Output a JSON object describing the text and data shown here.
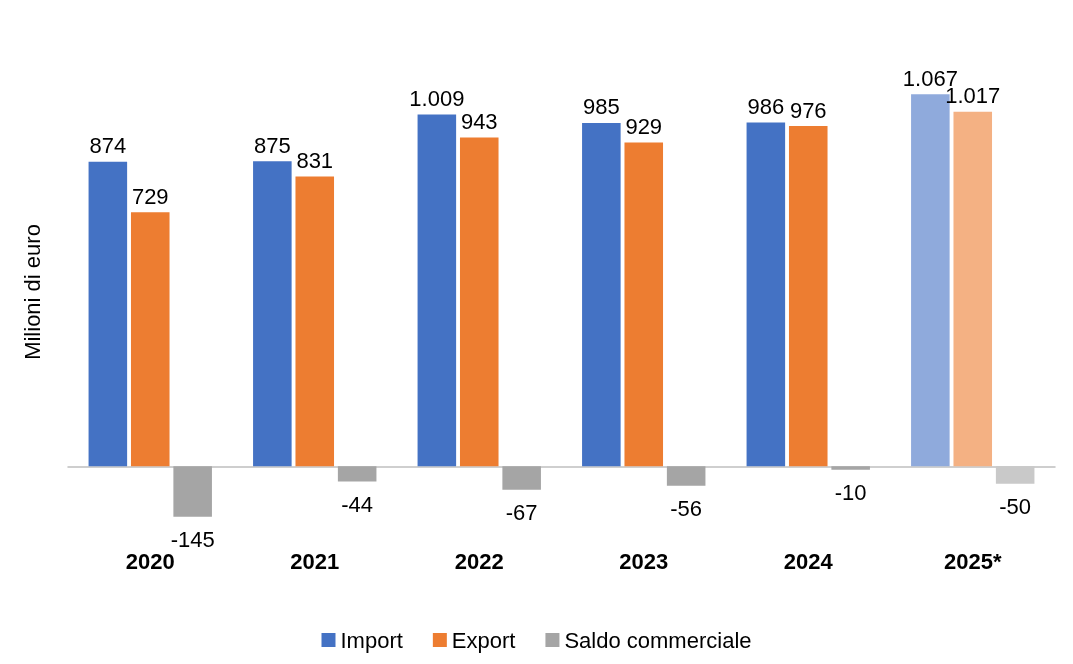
{
  "chart_data": {
    "type": "bar",
    "ylabel": "Milioni di euro",
    "categories": [
      "2020",
      "2021",
      "2022",
      "2023",
      "2024",
      "2025*"
    ],
    "series": [
      {
        "name": "Import",
        "color": "#4472c4",
        "colors": [
          "#4472c4",
          "#4472c4",
          "#4472c4",
          "#4472c4",
          "#4472c4",
          "#8faadc"
        ],
        "values": [
          874,
          875,
          1009,
          985,
          986,
          1067
        ],
        "value_labels": [
          "874",
          "875",
          "1.009",
          "985",
          "986",
          "1.067"
        ]
      },
      {
        "name": "Export",
        "color": "#ed7d31",
        "colors": [
          "#ed7d31",
          "#ed7d31",
          "#ed7d31",
          "#ed7d31",
          "#ed7d31",
          "#f4b183"
        ],
        "values": [
          729,
          831,
          943,
          929,
          976,
          1017
        ],
        "value_labels": [
          "729",
          "831",
          "943",
          "929",
          "976",
          "1.017"
        ]
      },
      {
        "name": "Saldo commerciale",
        "color": "#a5a5a5",
        "colors": [
          "#a5a5a5",
          "#a5a5a5",
          "#a5a5a5",
          "#a5a5a5",
          "#a5a5a5",
          "#c9c9c9"
        ],
        "values": [
          -145,
          -44,
          -67,
          -56,
          -10,
          -50
        ],
        "value_labels": [
          "-145",
          "-44",
          "-67",
          "-56",
          "-10",
          "-50"
        ]
      }
    ],
    "grid": false,
    "legend": "bottom"
  }
}
